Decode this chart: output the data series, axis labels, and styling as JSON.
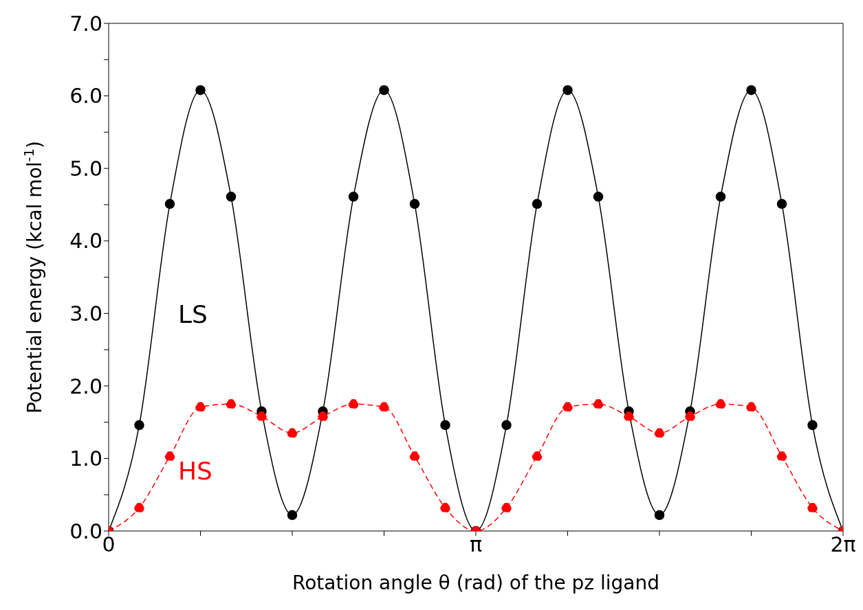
{
  "chart_data": {
    "type": "line",
    "xlabel": "Rotation angle θ (rad) of the pz ligand",
    "ylabel": "Potential energy (kcal mol$^{-1}$)",
    "x": [
      0,
      0.2618,
      0.5236,
      0.7854,
      1.0472,
      1.309,
      1.5708,
      1.8326,
      2.0944,
      2.3562,
      2.618,
      2.8798,
      3.1416,
      3.4034,
      3.6652,
      3.927,
      4.1888,
      4.4506,
      4.7124,
      4.9742,
      5.236,
      5.4978,
      5.7596,
      6.0214,
      6.2832
    ],
    "series": [
      {
        "name": "LS",
        "color": "#000000",
        "line_style": "solid",
        "values": [
          0,
          1.46,
          4.51,
          6.08,
          4.61,
          1.65,
          0.22,
          1.65,
          4.61,
          6.08,
          4.51,
          1.46,
          0,
          1.46,
          4.51,
          6.08,
          4.61,
          1.65,
          0.22,
          1.65,
          4.61,
          6.08,
          4.51,
          1.46,
          0
        ]
      },
      {
        "name": "HS",
        "color": "#ff0000",
        "line_style": "dashed",
        "values": [
          0,
          0.32,
          1.03,
          1.71,
          1.75,
          1.58,
          1.35,
          1.58,
          1.75,
          1.71,
          1.03,
          0.32,
          0,
          0.32,
          1.03,
          1.71,
          1.75,
          1.58,
          1.35,
          1.58,
          1.75,
          1.71,
          1.03,
          0.32,
          0
        ]
      }
    ],
    "xlim": [
      0,
      6.2832
    ],
    "xticks": [
      {
        "value": 0,
        "label": "0"
      },
      {
        "value": 0.7854,
        "label": null
      },
      {
        "value": 1.5708,
        "label": null
      },
      {
        "value": 2.3562,
        "label": null
      },
      {
        "value": 3.1416,
        "label": "π"
      },
      {
        "value": 3.927,
        "label": null
      },
      {
        "value": 4.7124,
        "label": null
      },
      {
        "value": 5.4978,
        "label": null
      },
      {
        "value": 6.2832,
        "label": "2π"
      }
    ],
    "ylim": [
      0,
      7
    ],
    "yticks": [
      {
        "value": 0,
        "label": "0.0"
      },
      {
        "value": 0.5,
        "label": null
      },
      {
        "value": 1,
        "label": "1.0"
      },
      {
        "value": 1.5,
        "label": null
      },
      {
        "value": 2,
        "label": "2.0"
      },
      {
        "value": 2.5,
        "label": null
      },
      {
        "value": 3,
        "label": "3.0"
      },
      {
        "value": 3.5,
        "label": null
      },
      {
        "value": 4,
        "label": "4.0"
      },
      {
        "value": 4.5,
        "label": null
      },
      {
        "value": 5,
        "label": "5.0"
      },
      {
        "value": 5.5,
        "label": null
      },
      {
        "value": 6,
        "label": "6.0"
      },
      {
        "value": 6.5,
        "label": null
      },
      {
        "value": 7,
        "label": "7.0"
      }
    ],
    "grid": false,
    "legend": false,
    "marker": "circle"
  }
}
